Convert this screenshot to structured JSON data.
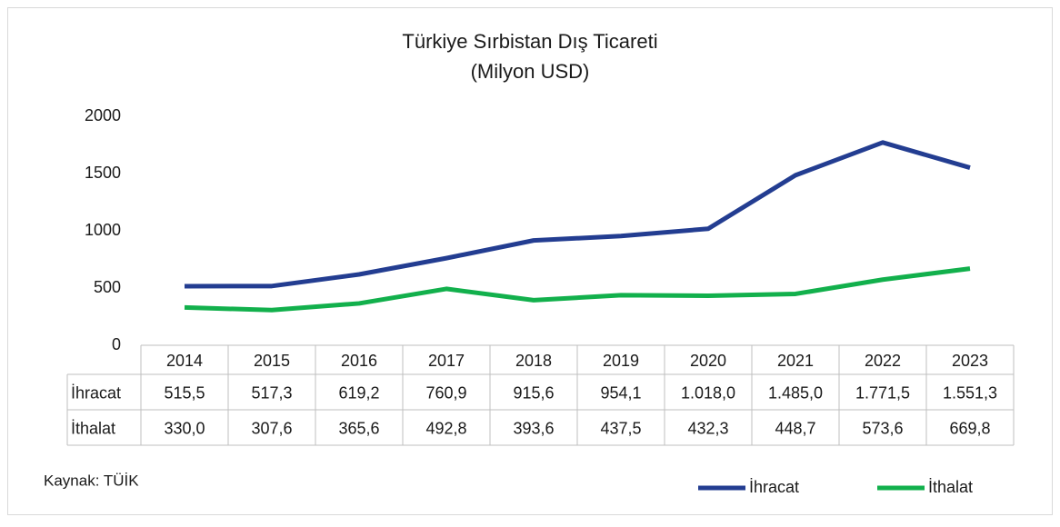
{
  "chart_data": {
    "type": "line",
    "title": "Türkiye Sırbistan Dış Ticareti",
    "subtitle": "(Milyon USD)",
    "source": "Kaynak: TÜİK",
    "categories": [
      "2014",
      "2015",
      "2016",
      "2017",
      "2018",
      "2019",
      "2020",
      "2021",
      "2022",
      "2023"
    ],
    "series": [
      {
        "name": "İhracat",
        "color": "#233d91",
        "values": [
          515.5,
          517.3,
          619.2,
          760.9,
          915.6,
          954.1,
          1018.0,
          1485.0,
          1771.5,
          1551.3
        ],
        "value_labels": [
          "515,5",
          "517,3",
          "619,2",
          "760,9",
          "915,6",
          "954,1",
          "1.018,0",
          "1.485,0",
          "1.771,5",
          "1.551,3"
        ]
      },
      {
        "name": "İthalat",
        "color": "#12b04c",
        "values": [
          330.0,
          307.6,
          365.6,
          492.8,
          393.6,
          437.5,
          432.3,
          448.7,
          573.6,
          669.8
        ],
        "value_labels": [
          "330,0",
          "307,6",
          "365,6",
          "492,8",
          "393,6",
          "437,5",
          "432,3",
          "448,7",
          "573,6",
          "669,8"
        ]
      }
    ],
    "ylim": [
      0,
      2000
    ],
    "yticks": [
      0,
      500,
      1000,
      1500,
      2000
    ],
    "grid": false,
    "legend": "bottom-right"
  }
}
